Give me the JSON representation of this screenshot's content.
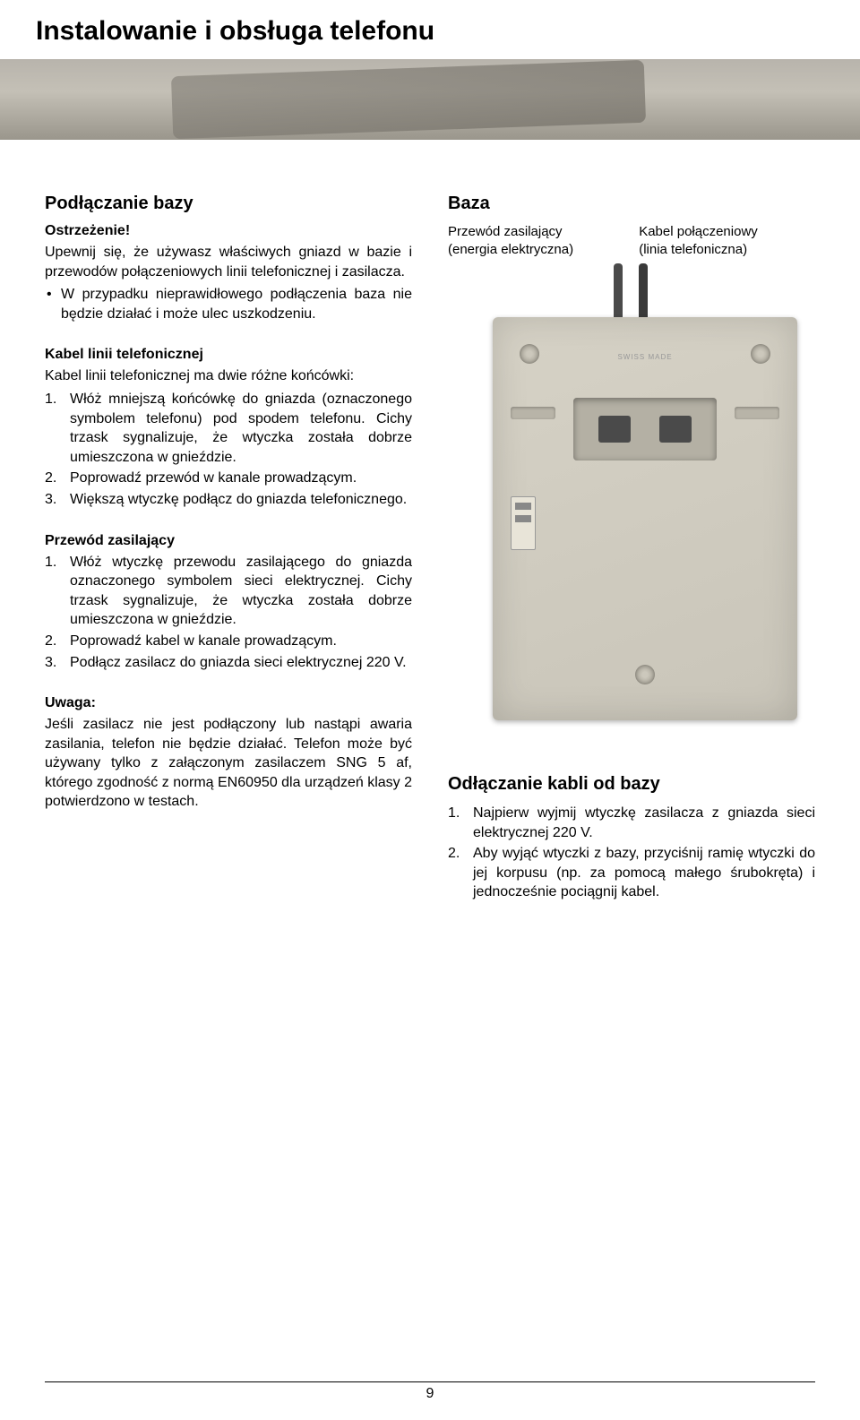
{
  "title": "Instalowanie i obsługa telefonu",
  "page_number": "9",
  "left": {
    "h1": "Podłączanie bazy",
    "warn_h": "Ostrzeżenie!",
    "warn_p": "Upewnij się, że używasz właściwych gniazd w bazie i przewodów połączeniowych linii telefonicznej i zasilacza.",
    "warn_b": "W przypadku nieprawidłowego podłączenia baza nie będzie działać i może ulec uszkodzeniu.",
    "kabel_h": "Kabel linii telefonicznej",
    "kabel_p": "Kabel linii telefonicznej ma dwie różne końcówki:",
    "kabel_1": "Włóż mniejszą końcówkę do gniazda (oznaczonego symbolem telefonu) pod spodem telefonu. Cichy trzask sygnalizuje, że wtyczka została dobrze umieszczona w gnieździe.",
    "kabel_2": "Poprowadź przewód w kanale prowadzącym.",
    "kabel_3": "Większą wtyczkę podłącz do gniazda telefonicznego.",
    "pz_h": "Przewód zasilający",
    "pz_1": "Włóż wtyczkę przewodu zasilającego do gniazda oznaczonego symbolem sieci elektrycznej. Cichy trzask sygnalizuje, że wtyczka została dobrze umieszczona w gnieździe.",
    "pz_2": "Poprowadź kabel w kanale prowadzącym.",
    "pz_3": "Podłącz zasilacz do gniazda sieci elektrycznej 220 V.",
    "uw_h": "Uwaga:",
    "uw_p": "Jeśli zasilacz nie jest podłączony lub nastąpi awaria zasilania, telefon nie będzie działać. Telefon może być używany tylko z załączonym zasilaczem SNG 5 af, którego zgodność z normą EN60950 dla urządzeń klasy 2 potwierdzono w testach."
  },
  "right": {
    "h1": "Baza",
    "lbl_l1": "Przewód zasilający",
    "lbl_l2": "(energia elektryczna)",
    "lbl_r1": "Kabel połączeniowy",
    "lbl_r2": "(linia telefoniczna)",
    "swiss": "SWISS MADE",
    "h2": "Odłączanie kabli od bazy",
    "od_1": "Najpierw wyjmij wtyczkę zasilacza z gniazda sieci elektrycznej 220 V.",
    "od_2": "Aby wyjąć wtyczki z bazy, przyciśnij ramię wtyczki do jej korpusu (np. za pomocą małego śrubokręta) i jednocześnie pociągnij kabel."
  }
}
